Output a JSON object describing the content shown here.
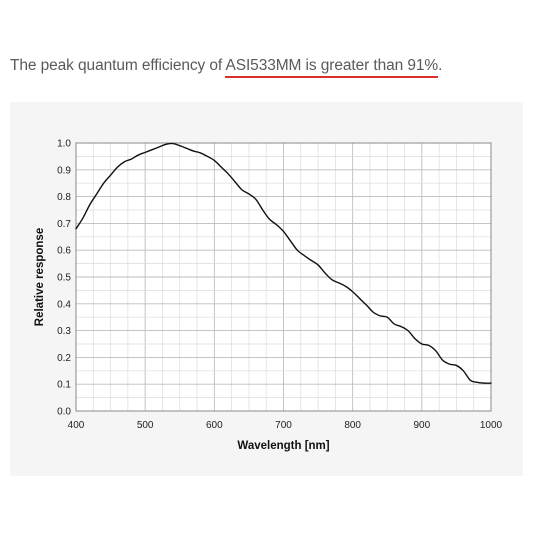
{
  "header": {
    "text_before": "The peak quantum efficiency of ",
    "text_highlight": "ASI533MM is greater than 91%",
    "text_after": ".",
    "underline_color": "#d9302c"
  },
  "chart_data": {
    "type": "line",
    "title": "",
    "xlabel": "Wavelength [nm]",
    "ylabel": "Relative response",
    "xlim": [
      400,
      1000
    ],
    "ylim": [
      0,
      1
    ],
    "xticks": [
      400,
      500,
      600,
      700,
      800,
      900,
      1000
    ],
    "yticks": [
      0.0,
      0.1,
      0.2,
      0.3,
      0.4,
      0.5,
      0.6,
      0.7,
      0.8,
      0.9,
      1.0
    ],
    "x_minor_step": 25,
    "y_minor_step": 0.05,
    "grid": true,
    "line_color": "#111111",
    "series": [
      {
        "name": "",
        "x": [
          400,
          410,
          420,
          430,
          440,
          450,
          460,
          470,
          480,
          490,
          500,
          510,
          520,
          530,
          540,
          550,
          560,
          570,
          580,
          590,
          600,
          610,
          620,
          630,
          640,
          650,
          660,
          670,
          680,
          690,
          700,
          710,
          720,
          730,
          740,
          750,
          760,
          770,
          780,
          790,
          800,
          810,
          820,
          830,
          840,
          850,
          860,
          870,
          880,
          890,
          900,
          910,
          920,
          930,
          940,
          950,
          960,
          970,
          980,
          990,
          1000
        ],
        "y": [
          0.68,
          0.72,
          0.77,
          0.81,
          0.85,
          0.88,
          0.91,
          0.93,
          0.94,
          0.955,
          0.965,
          0.975,
          0.985,
          0.995,
          0.998,
          0.99,
          0.98,
          0.97,
          0.963,
          0.95,
          0.935,
          0.91,
          0.885,
          0.855,
          0.825,
          0.81,
          0.79,
          0.75,
          0.715,
          0.695,
          0.67,
          0.635,
          0.6,
          0.58,
          0.562,
          0.545,
          0.515,
          0.49,
          0.478,
          0.465,
          0.445,
          0.42,
          0.395,
          0.368,
          0.355,
          0.35,
          0.325,
          0.315,
          0.3,
          0.27,
          0.25,
          0.245,
          0.225,
          0.19,
          0.175,
          0.17,
          0.15,
          0.115,
          0.107,
          0.104,
          0.104
        ]
      }
    ]
  }
}
